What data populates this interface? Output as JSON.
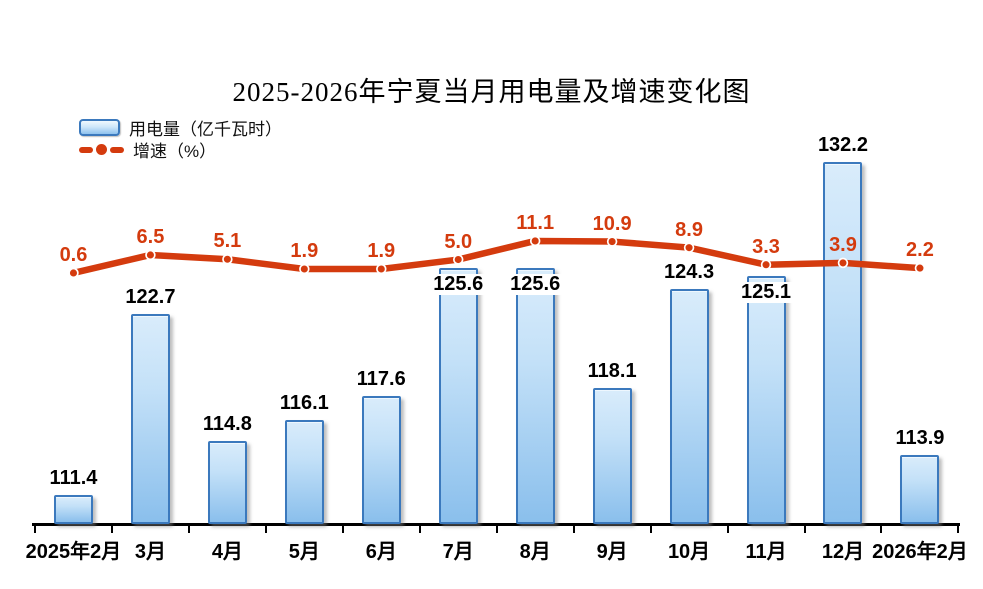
{
  "chart_data": {
    "type": "bar",
    "combo": "bar+line",
    "title": "2025-2026年宁夏当月用电量及增速变化图",
    "categories": [
      "2025年2月",
      "3月",
      "4月",
      "5月",
      "6月",
      "7月",
      "8月",
      "9月",
      "10月",
      "11月",
      "12月",
      "2026年2月"
    ],
    "series": [
      {
        "name": "用电量",
        "legend_label": "用电量（亿千瓦时）",
        "type": "bar",
        "unit": "亿千瓦时",
        "values": [
          111.4,
          122.7,
          114.8,
          116.1,
          117.6,
          125.6,
          125.6,
          118.1,
          124.3,
          125.1,
          132.2,
          113.9
        ]
      },
      {
        "name": "增速",
        "legend_label": "增速（%）",
        "type": "line",
        "unit": "%",
        "values": [
          0.6,
          6.5,
          5.1,
          1.9,
          1.9,
          5.0,
          11.1,
          10.9,
          8.9,
          3.3,
          3.9,
          2.2
        ]
      }
    ],
    "value_labels": true,
    "value_label_decimals": 1,
    "grid": false,
    "legend_position": "top-left",
    "bar_axis_baseline": 109.6,
    "colors": {
      "bar_fill_top": "#d9ecfb",
      "bar_fill_bottom": "#8abfec",
      "bar_border": "#3b79bd",
      "line": "#d43b0e",
      "axis": "#000000",
      "bar_label_text": "#000000",
      "line_label_text": "#d43b0e",
      "background": "#ffffff"
    }
  }
}
